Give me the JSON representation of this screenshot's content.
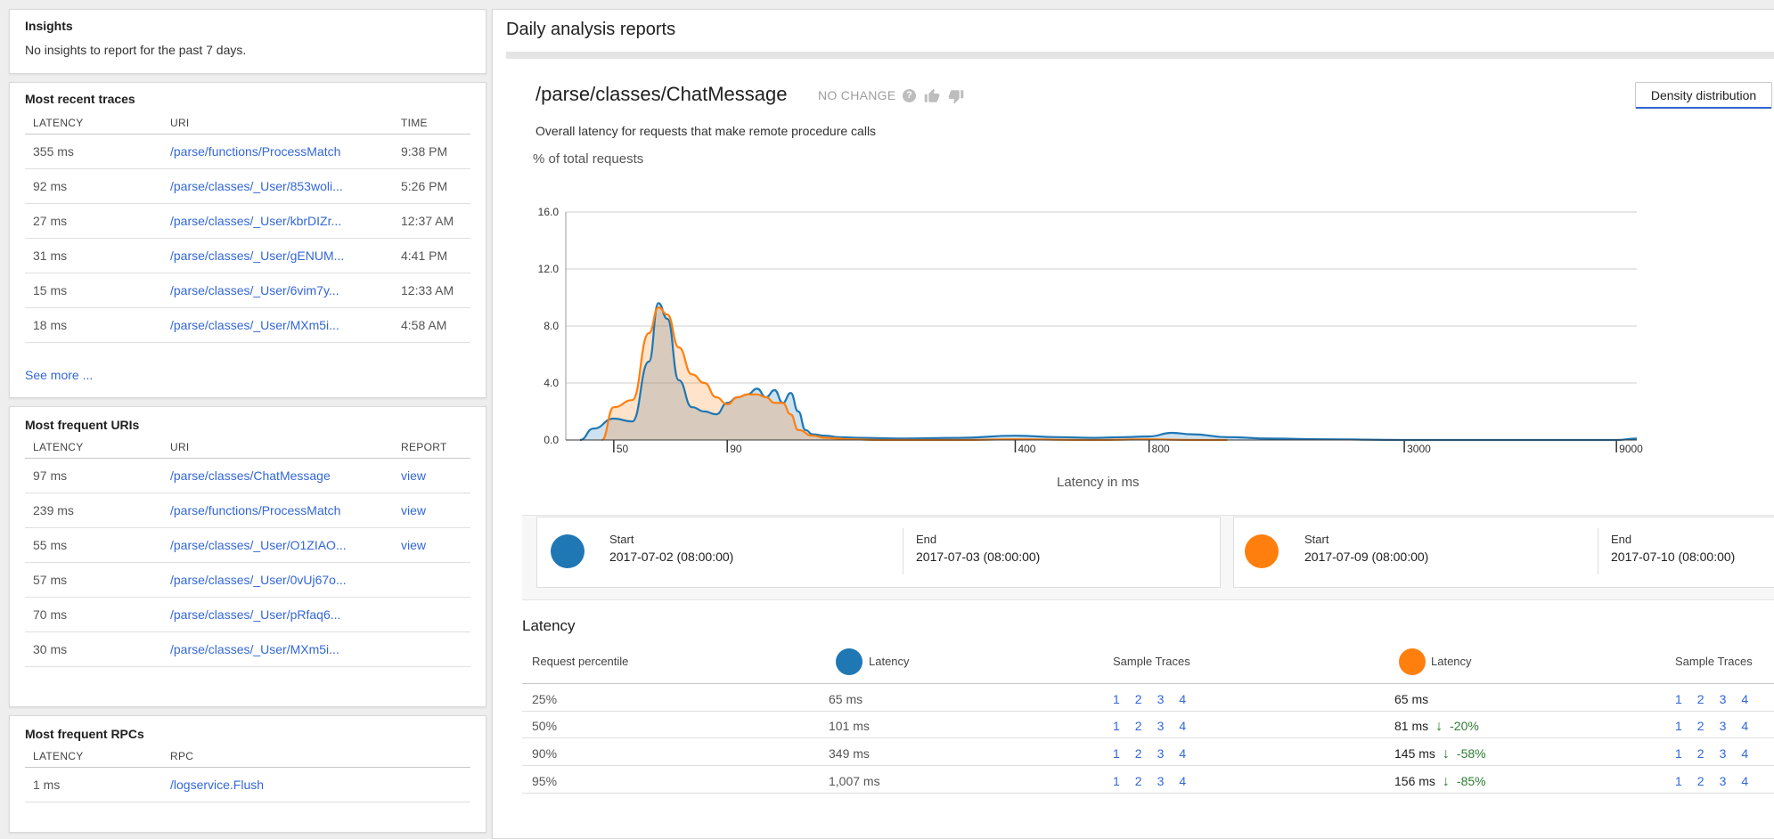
{
  "insights": {
    "title": "Insights",
    "message": "No insights to report for the past 7 days."
  },
  "recent_traces": {
    "title": "Most recent traces",
    "columns": [
      "LATENCY",
      "URI",
      "TIME"
    ],
    "rows": [
      [
        "355 ms",
        "/parse/functions/ProcessMatch",
        "9:38 PM"
      ],
      [
        "92 ms",
        "/parse/classes/_User/853woli...",
        "5:26 PM"
      ],
      [
        "27 ms",
        "/parse/classes/_User/kbrDIZr...",
        "12:37 AM"
      ],
      [
        "31 ms",
        "/parse/classes/_User/gENUM...",
        "4:41 PM"
      ],
      [
        "15 ms",
        "/parse/classes/_User/6vim7y...",
        "12:33 AM"
      ],
      [
        "18 ms",
        "/parse/classes/_User/MXm5i...",
        "4:58 AM"
      ]
    ],
    "see_more": "See more ..."
  },
  "frequent_uris": {
    "title": "Most frequent URIs",
    "columns": [
      "LATENCY",
      "URI",
      "REPORT"
    ],
    "rows": [
      [
        "97 ms",
        "/parse/classes/ChatMessage",
        "view"
      ],
      [
        "239 ms",
        "/parse/functions/ProcessMatch",
        "view"
      ],
      [
        "55 ms",
        "/parse/classes/_User/O1ZIAO...",
        "view"
      ],
      [
        "57 ms",
        "/parse/classes/_User/0vUj67o...",
        ""
      ],
      [
        "70 ms",
        "/parse/classes/_User/pRfaq6...",
        ""
      ],
      [
        "30 ms",
        "/parse/classes/_User/MXm5i...",
        ""
      ]
    ]
  },
  "frequent_rpcs": {
    "title": "Most frequent RPCs",
    "columns": [
      "LATENCY",
      "RPC"
    ],
    "rows": [
      [
        "1 ms",
        "/logservice.Flush"
      ]
    ]
  },
  "report": {
    "title": "Daily analysis reports",
    "route": "/parse/classes/ChatMessage",
    "status": "NO CHANGE",
    "help_icon": "question-icon",
    "density_button": "Density distribution",
    "subtitle": "Overall latency for requests that make remote procedure calls",
    "ylabel": "% of total requests",
    "xlabel": "Latency in ms"
  },
  "chart_data": {
    "type": "area",
    "title": "",
    "xlabel": "Latency in ms",
    "ylabel": "% of total requests",
    "x_scale": "log",
    "x_ticks": [
      "50",
      "90",
      "400",
      "800",
      "3000",
      "9000"
    ],
    "y_ticks": [
      "0.0",
      "4.0",
      "8.0",
      "12.0",
      "16.0"
    ],
    "ylim": [
      0,
      16
    ],
    "grid": true,
    "series": [
      {
        "color": "#1f77b4",
        "x": [
          42,
          45,
          50,
          55,
          60,
          63,
          66,
          70,
          75,
          80,
          85,
          90,
          95,
          100,
          105,
          110,
          115,
          120,
          125,
          130,
          135,
          140,
          150,
          160,
          180,
          220,
          300,
          400,
          500,
          600,
          700,
          800,
          900,
          1000,
          1200,
          1500,
          2000,
          3000,
          5000,
          9000,
          10000
        ],
        "y": [
          0,
          0.8,
          1.5,
          1.3,
          5.5,
          9.6,
          8.5,
          4.2,
          2.3,
          2.0,
          1.8,
          2.6,
          3.0,
          3.2,
          3.6,
          3.0,
          3.5,
          2.6,
          3.3,
          2.0,
          0.7,
          0.4,
          0.3,
          0.2,
          0.15,
          0.1,
          0.15,
          0.3,
          0.2,
          0.15,
          0.2,
          0.25,
          0.5,
          0.4,
          0.2,
          0.1,
          0.05,
          0.0,
          0.0,
          0.0,
          0.1
        ]
      },
      {
        "color": "#ff7f0e",
        "x": [
          47,
          50,
          55,
          60,
          63,
          66,
          70,
          75,
          80,
          85,
          90,
          95,
          100,
          105,
          110,
          115,
          120,
          125,
          130,
          140,
          150,
          170,
          200,
          300,
          400,
          600,
          800,
          1000,
          1200
        ],
        "y": [
          0,
          2.3,
          2.8,
          7.5,
          9.3,
          8.8,
          6.5,
          4.6,
          4.0,
          3.0,
          2.5,
          3.0,
          3.2,
          3.2,
          3.0,
          2.6,
          2.6,
          1.8,
          0.7,
          0.3,
          0.15,
          0.05,
          0.0,
          0.0,
          0.05,
          0.0,
          0.05,
          0.0,
          0.0
        ]
      }
    ]
  },
  "range_a": {
    "color": "#1f77b4",
    "start_label": "Start",
    "start": "2017-07-02 (08:00:00)",
    "end_label": "End",
    "end": "2017-07-03 (08:00:00)"
  },
  "range_b": {
    "color": "#ff7f0e",
    "start_label": "Start",
    "start": "2017-07-09 (08:00:00)",
    "end_label": "End",
    "end": "2017-07-10 (08:00:00)"
  },
  "latency": {
    "title": "Latency",
    "headers": {
      "percentile": "Request percentile",
      "latency_a": "Latency",
      "traces_a": "Sample Traces",
      "latency_b": "Latency",
      "traces_b": "Sample Traces"
    },
    "rows": [
      {
        "p": "25%",
        "a": "65 ms",
        "b": "65 ms",
        "change": ""
      },
      {
        "p": "50%",
        "a": "101 ms",
        "b": "81 ms",
        "change": "-20%"
      },
      {
        "p": "90%",
        "a": "349 ms",
        "b": "145 ms",
        "change": "-58%"
      },
      {
        "p": "95%",
        "a": "1,007 ms",
        "b": "156 ms",
        "change": "-85%"
      }
    ],
    "trace_links": [
      "1",
      "2",
      "3",
      "4"
    ],
    "down_arrow": "↓"
  }
}
